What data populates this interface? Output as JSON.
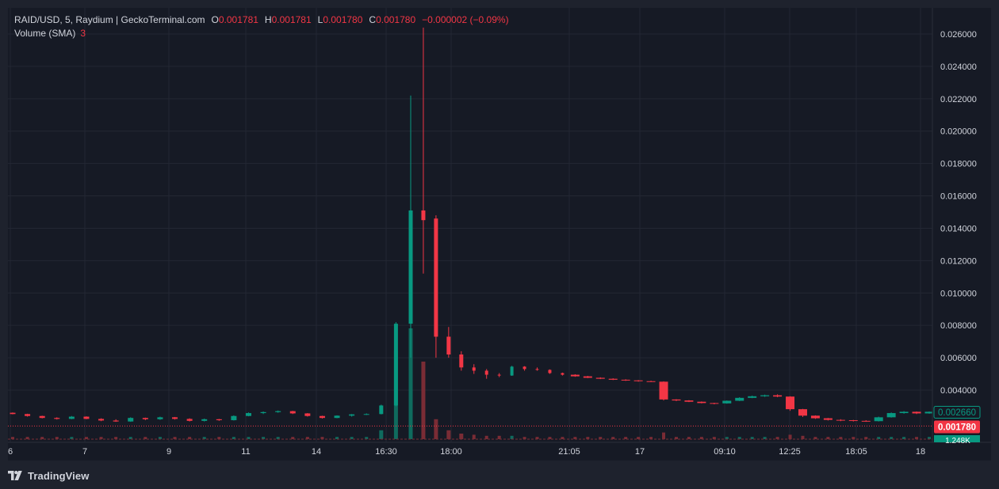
{
  "legend": {
    "title": "RAID/USD, 5, Raydium | GeckoTerminal.com",
    "open_key": "O",
    "open": "0.001781",
    "high_key": "H",
    "high": "0.001781",
    "low_key": "L",
    "low": "0.001780",
    "close_key": "C",
    "close": "0.001780",
    "change": "−0.000002 (−0.09%)",
    "volume_label": "Volume (SMA)",
    "volume_value": "3"
  },
  "price_badges": {
    "current": "0.001780",
    "current_color": "#f23645",
    "marker": "0.002660",
    "marker_color": "#089981",
    "volume_partial": "1.248K"
  },
  "branding": {
    "text": "TradingView"
  },
  "colors": {
    "up": "#089981",
    "down": "#f23645",
    "up_vol": "#0f6b5e",
    "down_vol": "#7a2c35"
  },
  "chart_data": {
    "type": "candlestick",
    "symbol": "RAID/USD",
    "interval": "5",
    "exchange": "Raydium",
    "y_ticks": [
      "0.026000",
      "0.024000",
      "0.022000",
      "0.020000",
      "0.018000",
      "0.016000",
      "0.014000",
      "0.012000",
      "0.010000",
      "0.008000",
      "0.006000",
      "0.004000"
    ],
    "y_tick_values": [
      0.026,
      0.024,
      0.022,
      0.02,
      0.018,
      0.016,
      0.014,
      0.012,
      0.01,
      0.008,
      0.006,
      0.004
    ],
    "ylim": [
      0.0,
      0.0273
    ],
    "x_ticks": [
      "6",
      "7",
      "9",
      "11",
      "14",
      "16:30",
      "18:00",
      "21:05",
      "17",
      "09:10",
      "12:25",
      "18:05",
      "18"
    ],
    "grid": true,
    "candles": [
      {
        "o": 0.0026,
        "h": 0.00262,
        "l": 0.0025,
        "c": 0.00252
      },
      {
        "o": 0.00252,
        "h": 0.00254,
        "l": 0.00236,
        "c": 0.0024
      },
      {
        "o": 0.0024,
        "h": 0.00242,
        "l": 0.00225,
        "c": 0.00228
      },
      {
        "o": 0.00228,
        "h": 0.00232,
        "l": 0.00218,
        "c": 0.00222
      },
      {
        "o": 0.00222,
        "h": 0.0024,
        "l": 0.0022,
        "c": 0.00236
      },
      {
        "o": 0.00236,
        "h": 0.00238,
        "l": 0.0022,
        "c": 0.00222
      },
      {
        "o": 0.00222,
        "h": 0.00226,
        "l": 0.00208,
        "c": 0.00212
      },
      {
        "o": 0.00212,
        "h": 0.0022,
        "l": 0.00204,
        "c": 0.00206
      },
      {
        "o": 0.00206,
        "h": 0.00232,
        "l": 0.00204,
        "c": 0.00228
      },
      {
        "o": 0.00228,
        "h": 0.0023,
        "l": 0.00214,
        "c": 0.0022
      },
      {
        "o": 0.0022,
        "h": 0.00236,
        "l": 0.00216,
        "c": 0.00232
      },
      {
        "o": 0.00232,
        "h": 0.00234,
        "l": 0.00218,
        "c": 0.00222
      },
      {
        "o": 0.00222,
        "h": 0.00226,
        "l": 0.00206,
        "c": 0.0021
      },
      {
        "o": 0.0021,
        "h": 0.00224,
        "l": 0.00206,
        "c": 0.0022
      },
      {
        "o": 0.0022,
        "h": 0.00222,
        "l": 0.0021,
        "c": 0.00214
      },
      {
        "o": 0.00214,
        "h": 0.00244,
        "l": 0.00212,
        "c": 0.0024
      },
      {
        "o": 0.0024,
        "h": 0.00262,
        "l": 0.00238,
        "c": 0.00258
      },
      {
        "o": 0.00258,
        "h": 0.00268,
        "l": 0.00252,
        "c": 0.00264
      },
      {
        "o": 0.00264,
        "h": 0.00274,
        "l": 0.0026,
        "c": 0.0027
      },
      {
        "o": 0.0027,
        "h": 0.00272,
        "l": 0.00252,
        "c": 0.00256
      },
      {
        "o": 0.00256,
        "h": 0.00258,
        "l": 0.00236,
        "c": 0.0024
      },
      {
        "o": 0.0024,
        "h": 0.00242,
        "l": 0.00224,
        "c": 0.00228
      },
      {
        "o": 0.00228,
        "h": 0.00244,
        "l": 0.00226,
        "c": 0.00242
      },
      {
        "o": 0.00242,
        "h": 0.00252,
        "l": 0.00236,
        "c": 0.0025
      },
      {
        "o": 0.0025,
        "h": 0.00256,
        "l": 0.00246,
        "c": 0.00252
      },
      {
        "o": 0.00252,
        "h": 0.0031,
        "l": 0.0025,
        "c": 0.00305
      },
      {
        "o": 0.00305,
        "h": 0.0082,
        "l": 0.003,
        "c": 0.0081
      },
      {
        "o": 0.0081,
        "h": 0.0222,
        "l": 0.006,
        "c": 0.0151
      },
      {
        "o": 0.0151,
        "h": 0.0264,
        "l": 0.0112,
        "c": 0.0145
      },
      {
        "o": 0.0146,
        "h": 0.0148,
        "l": 0.006,
        "c": 0.0073
      },
      {
        "o": 0.0073,
        "h": 0.0079,
        "l": 0.006,
        "c": 0.0062
      },
      {
        "o": 0.0062,
        "h": 0.0064,
        "l": 0.0052,
        "c": 0.0054
      },
      {
        "o": 0.0054,
        "h": 0.0056,
        "l": 0.005,
        "c": 0.0052
      },
      {
        "o": 0.0052,
        "h": 0.0053,
        "l": 0.0047,
        "c": 0.00495
      },
      {
        "o": 0.00495,
        "h": 0.00505,
        "l": 0.0048,
        "c": 0.0049
      },
      {
        "o": 0.0049,
        "h": 0.0055,
        "l": 0.00488,
        "c": 0.00545
      },
      {
        "o": 0.00545,
        "h": 0.00548,
        "l": 0.0052,
        "c": 0.0053
      },
      {
        "o": 0.0053,
        "h": 0.0054,
        "l": 0.0052,
        "c": 0.00525
      },
      {
        "o": 0.00525,
        "h": 0.00528,
        "l": 0.005,
        "c": 0.00505
      },
      {
        "o": 0.00505,
        "h": 0.00508,
        "l": 0.0049,
        "c": 0.00495
      },
      {
        "o": 0.00495,
        "h": 0.00498,
        "l": 0.00482,
        "c": 0.00485
      },
      {
        "o": 0.00485,
        "h": 0.00488,
        "l": 0.00474,
        "c": 0.00476
      },
      {
        "o": 0.00476,
        "h": 0.00479,
        "l": 0.00468,
        "c": 0.0047
      },
      {
        "o": 0.0047,
        "h": 0.00473,
        "l": 0.00462,
        "c": 0.00464
      },
      {
        "o": 0.00464,
        "h": 0.00467,
        "l": 0.00457,
        "c": 0.0046
      },
      {
        "o": 0.0046,
        "h": 0.00462,
        "l": 0.00452,
        "c": 0.00455
      },
      {
        "o": 0.00455,
        "h": 0.00458,
        "l": 0.0045,
        "c": 0.00452
      },
      {
        "o": 0.00452,
        "h": 0.00454,
        "l": 0.00336,
        "c": 0.00342
      },
      {
        "o": 0.00342,
        "h": 0.00344,
        "l": 0.00332,
        "c": 0.00336
      },
      {
        "o": 0.00336,
        "h": 0.00338,
        "l": 0.00326,
        "c": 0.00328
      },
      {
        "o": 0.00328,
        "h": 0.0033,
        "l": 0.00318,
        "c": 0.0032
      },
      {
        "o": 0.0032,
        "h": 0.00322,
        "l": 0.00312,
        "c": 0.00318
      },
      {
        "o": 0.00318,
        "h": 0.00336,
        "l": 0.00316,
        "c": 0.00334
      },
      {
        "o": 0.00334,
        "h": 0.00356,
        "l": 0.00332,
        "c": 0.00352
      },
      {
        "o": 0.00352,
        "h": 0.00366,
        "l": 0.0035,
        "c": 0.00362
      },
      {
        "o": 0.00362,
        "h": 0.00372,
        "l": 0.00358,
        "c": 0.00368
      },
      {
        "o": 0.00368,
        "h": 0.00374,
        "l": 0.00356,
        "c": 0.0036
      },
      {
        "o": 0.0036,
        "h": 0.00362,
        "l": 0.00272,
        "c": 0.00282
      },
      {
        "o": 0.00282,
        "h": 0.00284,
        "l": 0.00234,
        "c": 0.00242
      },
      {
        "o": 0.00242,
        "h": 0.00244,
        "l": 0.00222,
        "c": 0.00226
      },
      {
        "o": 0.00226,
        "h": 0.00228,
        "l": 0.00212,
        "c": 0.00216
      },
      {
        "o": 0.00216,
        "h": 0.0022,
        "l": 0.00208,
        "c": 0.00214
      },
      {
        "o": 0.00214,
        "h": 0.00216,
        "l": 0.00206,
        "c": 0.0021
      },
      {
        "o": 0.0021,
        "h": 0.00214,
        "l": 0.00204,
        "c": 0.00208
      },
      {
        "o": 0.00208,
        "h": 0.00236,
        "l": 0.00206,
        "c": 0.00232
      },
      {
        "o": 0.00232,
        "h": 0.00262,
        "l": 0.0023,
        "c": 0.00258
      },
      {
        "o": 0.00258,
        "h": 0.0027,
        "l": 0.00254,
        "c": 0.00266
      },
      {
        "o": 0.00266,
        "h": 0.00268,
        "l": 0.00252,
        "c": 0.00256
      },
      {
        "o": 0.00256,
        "h": 0.00268,
        "l": 0.00254,
        "c": 0.00266
      }
    ],
    "volumes": [
      0.02,
      0.02,
      0.02,
      0.02,
      0.02,
      0.02,
      0.02,
      0.02,
      0.02,
      0.02,
      0.02,
      0.02,
      0.02,
      0.02,
      0.02,
      0.02,
      0.02,
      0.02,
      0.02,
      0.02,
      0.02,
      0.02,
      0.02,
      0.02,
      0.02,
      0.08,
      0.8,
      1.0,
      0.7,
      0.18,
      0.08,
      0.05,
      0.04,
      0.03,
      0.03,
      0.03,
      0.02,
      0.02,
      0.02,
      0.02,
      0.02,
      0.02,
      0.02,
      0.02,
      0.02,
      0.02,
      0.02,
      0.06,
      0.02,
      0.02,
      0.02,
      0.02,
      0.02,
      0.02,
      0.02,
      0.02,
      0.02,
      0.04,
      0.03,
      0.02,
      0.02,
      0.02,
      0.02,
      0.02,
      0.02,
      0.02,
      0.02,
      0.02,
      0.02
    ]
  }
}
